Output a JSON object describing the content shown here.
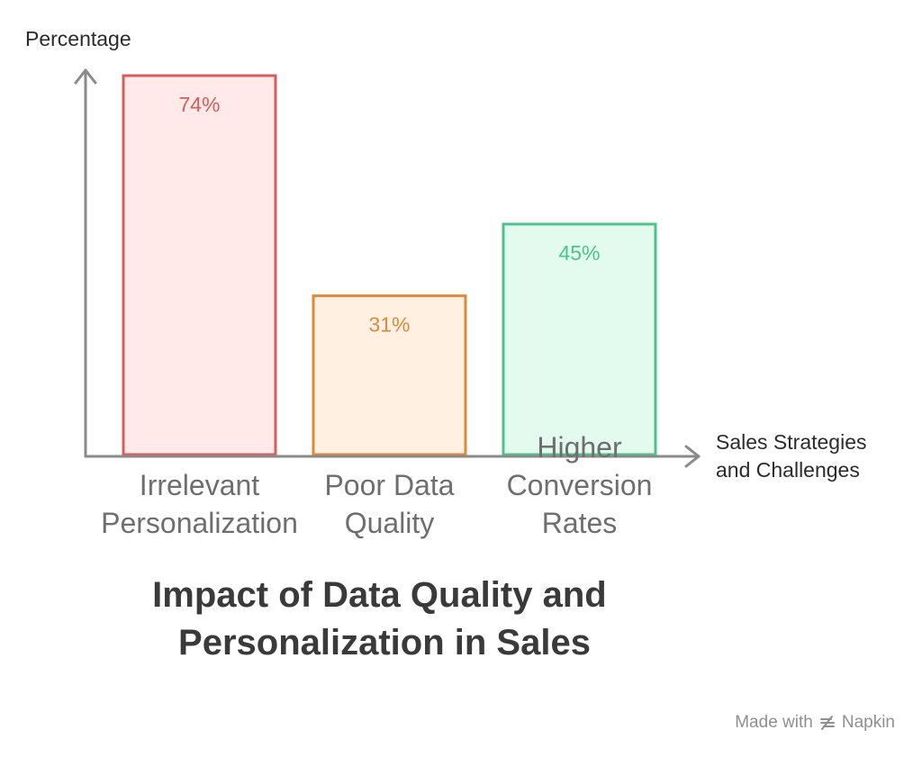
{
  "chart_data": {
    "type": "bar",
    "title": "Impact of Data Quality and Personalization in Sales",
    "title_lines": [
      "Impact of Data Quality and",
      "Personalization in Sales"
    ],
    "ylabel": "Percentage",
    "xlabel": "Sales Strategies and Challenges",
    "xlabel_lines": [
      "Sales Strategies",
      "and Challenges"
    ],
    "ylim": [
      0,
      74
    ],
    "grid": false,
    "categories": [
      "Irrelevant Personalization",
      "Poor Data Quality",
      "Higher Conversion Rates"
    ],
    "category_lines": [
      [
        "Irrelevant",
        "Personalization"
      ],
      [
        "Poor Data",
        "Quality"
      ],
      [
        "Higher",
        "Conversion",
        "Rates"
      ]
    ],
    "values": [
      74,
      31,
      45
    ],
    "value_labels": [
      "74%",
      "31%",
      "45%"
    ],
    "colors": {
      "fills": [
        "#ffe9e9",
        "#fff0e1",
        "#e2fbee"
      ],
      "strokes": [
        "#d95c5c",
        "#d98a3d",
        "#4cc488"
      ],
      "labels": [
        "#d95c5c",
        "#d98a3d",
        "#4cc488"
      ],
      "axis": "#8a8a8a"
    }
  },
  "footer": {
    "text": "Made with",
    "brand": "Napkin",
    "icon": "napkin-logo-icon"
  }
}
